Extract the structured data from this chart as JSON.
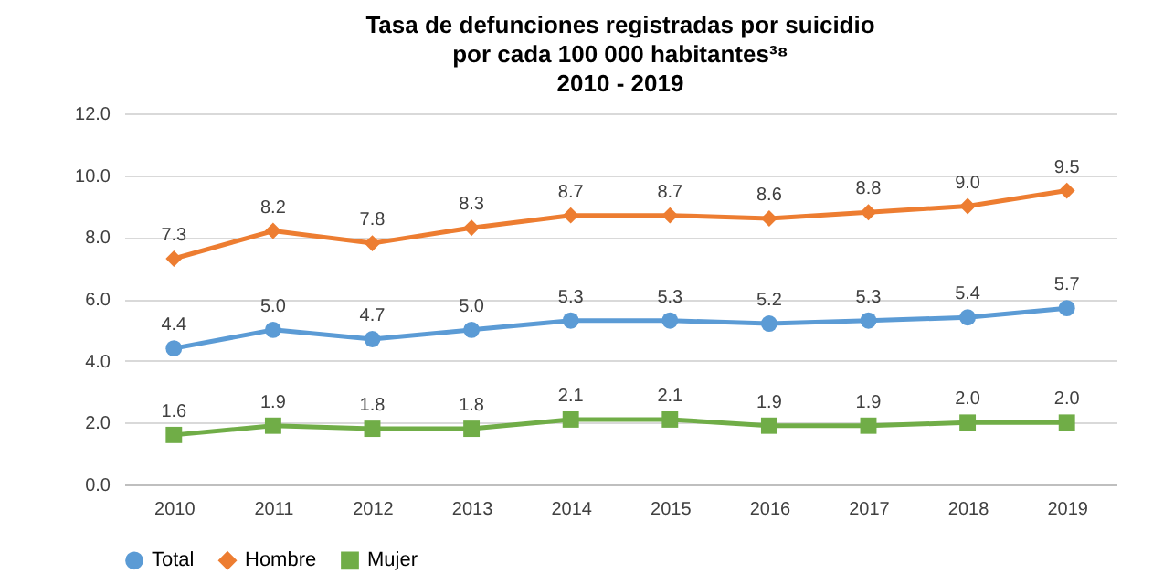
{
  "chart_data": {
    "type": "line",
    "title": "Tasa de defunciones registradas por suicidio\npor cada 100 000 habitantes³⁸\n2010 - 2019",
    "categories": [
      "2010",
      "2011",
      "2012",
      "2013",
      "2014",
      "2015",
      "2016",
      "2017",
      "2018",
      "2019"
    ],
    "series": [
      {
        "name": "Total",
        "color": "#5b9bd5",
        "marker": "circle",
        "values": [
          4.4,
          5.0,
          4.7,
          5.0,
          5.3,
          5.3,
          5.2,
          5.3,
          5.4,
          5.7
        ],
        "value_labels": [
          "4.4",
          "5.0",
          "4.7",
          "5.0",
          "5.3",
          "5.3",
          "5.2",
          "5.3",
          "5.4",
          "5.7"
        ]
      },
      {
        "name": "Hombre",
        "color": "#ed7d31",
        "marker": "diamond",
        "values": [
          7.3,
          8.2,
          7.8,
          8.3,
          8.7,
          8.7,
          8.6,
          8.8,
          9.0,
          9.5
        ],
        "value_labels": [
          "7.3",
          "8.2",
          "7.8",
          "8.3",
          "8.7",
          "8.7",
          "8.6",
          "8.8",
          "9.0",
          "9.5"
        ]
      },
      {
        "name": "Mujer",
        "color": "#70ad47",
        "marker": "square",
        "values": [
          1.6,
          1.9,
          1.8,
          1.8,
          2.1,
          2.1,
          1.9,
          1.9,
          2.0,
          2.0
        ],
        "value_labels": [
          "1.6",
          "1.9",
          "1.8",
          "1.8",
          "2.1",
          "2.1",
          "1.9",
          "1.9",
          "2.0",
          "2.0"
        ]
      }
    ],
    "ylim": [
      0,
      12
    ],
    "yticks": [
      {
        "value": 0,
        "label": "0.0"
      },
      {
        "value": 2,
        "label": "2.0"
      },
      {
        "value": 4,
        "label": "4.0"
      },
      {
        "value": 6,
        "label": "6.0"
      },
      {
        "value": 8,
        "label": "8.0"
      },
      {
        "value": 10,
        "label": "10.0"
      },
      {
        "value": 12,
        "label": "12.0"
      }
    ],
    "grid": "y",
    "legend": "bottom",
    "line_style": "solid"
  }
}
